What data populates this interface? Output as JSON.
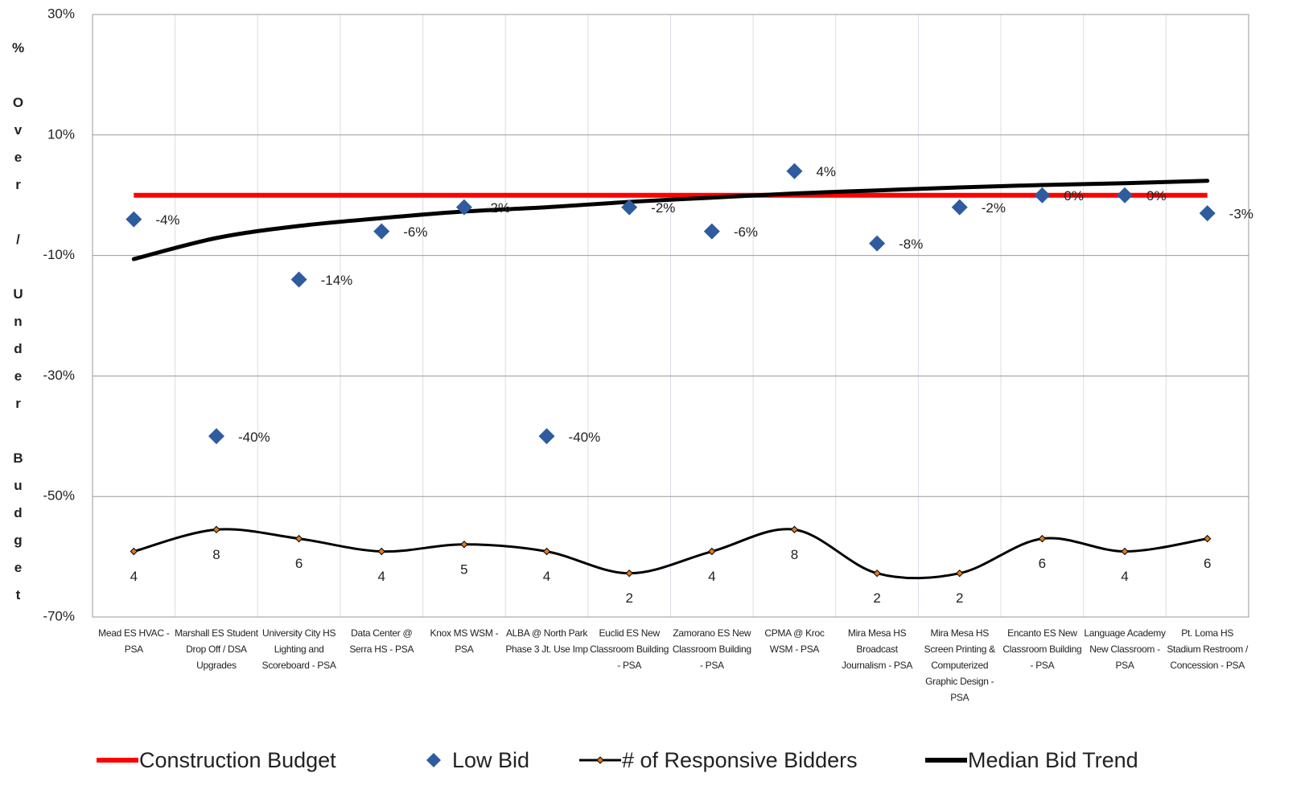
{
  "chart_data": {
    "type": "line",
    "y_label": "% Over / Under Budget",
    "categories": [
      "Mead ES HVAC - PSA",
      "Marshall ES Student Drop Off / DSA Upgrades",
      "University City HS Lighting and Scoreboard - PSA",
      "Data Center @ Serra HS - PSA",
      "Knox MS WSM - PSA",
      "ALBA @ North Park Phase 3 Jt. Use Imp",
      "Euclid ES New Classroom Building - PSA",
      "Zamorano ES New Classroom Building - PSA",
      "CPMA @ Kroc WSM - PSA",
      "Mira Mesa HS Broadcast Journalism - PSA",
      "Mira Mesa HS Screen Printing & Computerized Graphic Design - PSA",
      "Encanto ES New Classroom Building - PSA",
      "Language Academy New Classroom - PSA",
      "Pt. Loma HS Stadium Restroom / Concession - PSA"
    ],
    "ylim": [
      -70,
      30
    ],
    "yticks": [
      {
        "value": -70,
        "label": "-70%"
      },
      {
        "value": -50,
        "label": "-50%"
      },
      {
        "value": -30,
        "label": "-30%"
      },
      {
        "value": -10,
        "label": "-10%"
      },
      {
        "value": 10,
        "label": "10%"
      },
      {
        "value": 30,
        "label": "30%"
      }
    ],
    "y2lim": [
      0.5,
      100000000
    ],
    "y2log": true,
    "grid": true,
    "legend": "bottom",
    "series": [
      {
        "name": "Construction Budget",
        "type": "line",
        "color": "#ff0000",
        "values": [
          0,
          0,
          0,
          0,
          0,
          0,
          0,
          0,
          0,
          0,
          0,
          0,
          0,
          0
        ]
      },
      {
        "name": "Low Bid",
        "type": "scatter",
        "color": "#2e5c9e",
        "values": [
          -4,
          -40,
          -14,
          -6,
          -2,
          -40,
          -2,
          -6,
          4,
          -8,
          -2,
          0,
          0,
          -3
        ],
        "value_labels": [
          "-4%",
          "-40%",
          "-14%",
          "-6%",
          "-2%",
          "-40%",
          "-2%",
          "-6%",
          "4%",
          "-8%",
          "-2%",
          "0%",
          "0%",
          "-3%"
        ]
      },
      {
        "name": "# of Responsive Bidders",
        "type": "line",
        "axis": "y2",
        "color": "#000000",
        "marker_color": "#e07b20",
        "values": [
          4,
          8,
          6,
          4,
          5,
          4,
          2,
          4,
          8,
          2,
          2,
          6,
          4,
          6
        ]
      },
      {
        "name": "Median Bid Trend",
        "type": "line",
        "color": "#000000",
        "values": [
          -10.6,
          -7.1,
          -5.1,
          -3.8,
          -2.7,
          -2.0,
          -1.1,
          -0.4,
          0.3,
          0.8,
          1.3,
          1.7,
          2.0,
          2.4
        ]
      }
    ]
  }
}
